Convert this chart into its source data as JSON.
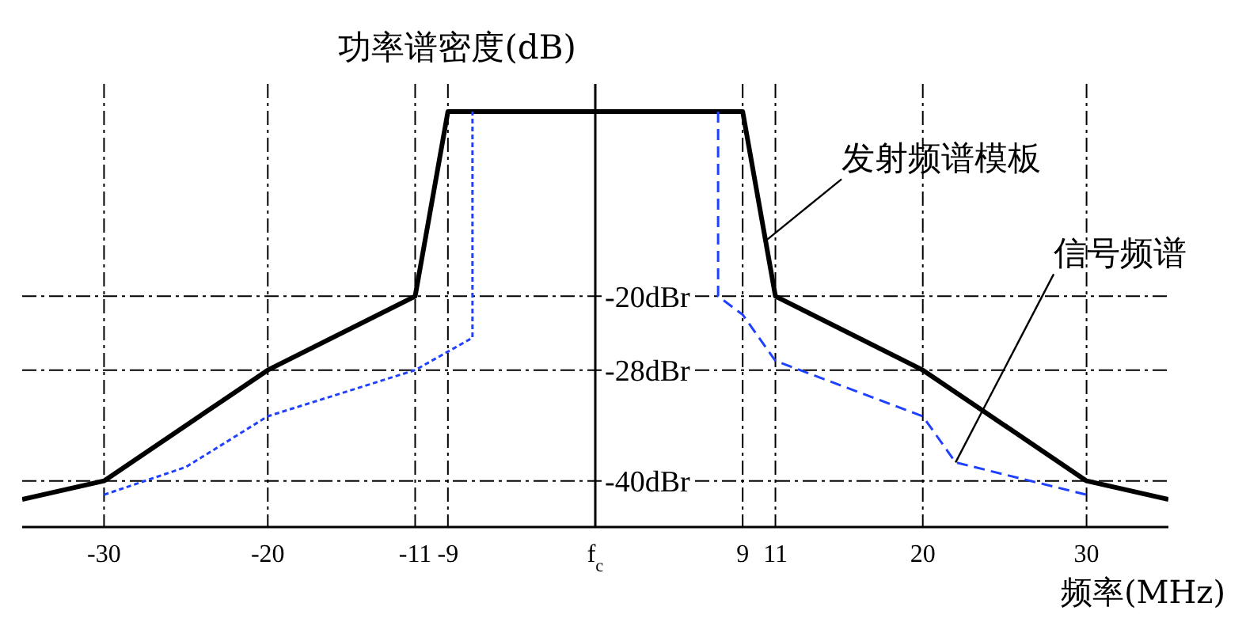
{
  "chart_data": {
    "type": "line",
    "xlabel": "频率(MHz)",
    "ylabel": "功率谱密度(dB)",
    "xlim": [
      -35,
      35
    ],
    "ylim": [
      -45,
      3
    ],
    "xticks": [
      -30,
      -20,
      -11,
      -9,
      {
        "value": 0,
        "label": "f$_{c}$"
      },
      9,
      11,
      20,
      30
    ],
    "yticks": [
      {
        "value": -20,
        "label": "-20dBr"
      },
      {
        "value": -28,
        "label": "-28dBr"
      },
      {
        "value": -40,
        "label": "-40dBr"
      }
    ],
    "grid": true,
    "series": [
      {
        "color": "#000000",
        "line_style": "solid",
        "x": [
          -35,
          -30,
          -20,
          -11,
          -9,
          9,
          11,
          20,
          30,
          35
        ],
        "values": [
          -42,
          -40,
          -28,
          -20,
          0,
          0,
          -20,
          -28,
          -40,
          -42
        ]
      },
      {
        "color": "#2040ff",
        "line_style": "dotted",
        "x": [
          -30,
          -25,
          -20,
          -11,
          -7.5,
          -7.5
        ],
        "values": [
          -41.5,
          -38.5,
          -33,
          -28,
          -24.5,
          0
        ]
      },
      {
        "color": "#2040ff",
        "line_style": "dashed",
        "x": [
          7.5,
          7.5,
          9,
          11,
          20,
          22,
          30
        ],
        "values": [
          0,
          -20,
          -22,
          -27,
          -33,
          -38,
          -41.5
        ]
      }
    ],
    "annotations": [
      {
        "text": "发射频谱模板",
        "x": 10.4,
        "y": -14
      },
      {
        "text": "信号频谱",
        "x": 22,
        "y": -38
      }
    ]
  }
}
